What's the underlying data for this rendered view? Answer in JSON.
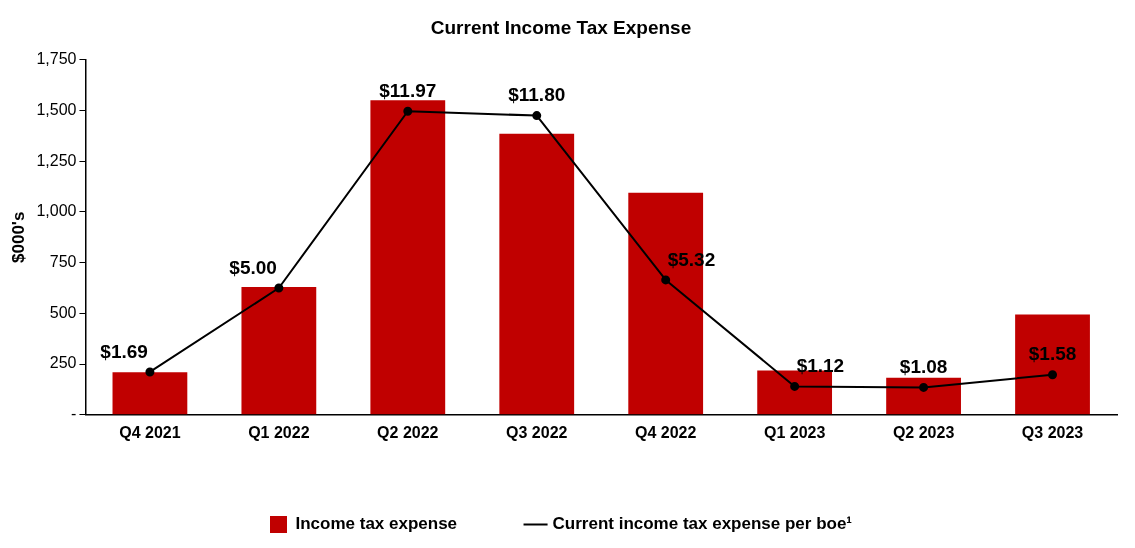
{
  "chart_data": {
    "type": "bar",
    "title": "Current Income Tax Expense",
    "ylabel": "$000's",
    "categories": [
      "Q4 2021",
      "Q1 2022",
      "Q2 2022",
      "Q3 2022",
      "Q4 2022",
      "Q1 2023",
      "Q2 2023",
      "Q3 2023"
    ],
    "series": [
      {
        "name": "Income tax expense",
        "color": "#c00000",
        "values": [
          210,
          630,
          1550,
          1385,
          1095,
          218,
          183,
          495
        ]
      },
      {
        "name": "Current income tax expense per boe¹",
        "type": "line",
        "axis": "y2",
        "color": "#000000",
        "marker": "circle",
        "values": [
          1.69,
          5.0,
          11.97,
          11.8,
          5.32,
          1.12,
          1.08,
          1.58
        ],
        "value_labels": [
          "$1.69",
          "$5.00",
          "$11.97",
          "$11.80",
          "$5.32",
          "$1.12",
          "$1.08",
          "$1.58"
        ]
      }
    ],
    "ylim": [
      0,
      1750
    ],
    "yticks": [
      {
        "value": 0,
        "label": "-"
      },
      {
        "value": 250,
        "label": "250"
      },
      {
        "value": 500,
        "label": "500"
      },
      {
        "value": 750,
        "label": "750"
      },
      {
        "value": 1000,
        "label": "1,000"
      },
      {
        "value": 1250,
        "label": "1,250"
      },
      {
        "value": 1500,
        "label": "1,500"
      },
      {
        "value": 1750,
        "label": "1,750"
      }
    ],
    "y2lim": [
      0,
      14
    ],
    "grid": false,
    "legend": "bottom"
  }
}
